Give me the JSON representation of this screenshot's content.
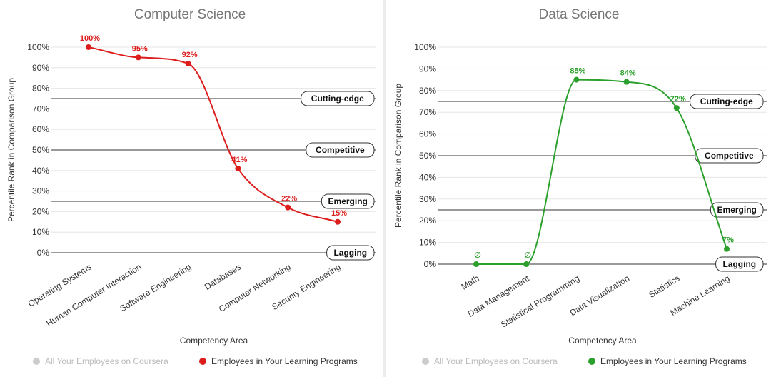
{
  "chart_data": [
    {
      "type": "line",
      "title": "Computer Science",
      "xlabel": "Competency Area",
      "ylabel": "Percentile Rank in Comparison Group",
      "ylim": [
        0,
        100
      ],
      "yticks": [
        "0%",
        "10%",
        "20%",
        "30%",
        "40%",
        "50%",
        "60%",
        "70%",
        "80%",
        "90%",
        "100%"
      ],
      "grid": true,
      "categories": [
        "Operating Systems",
        "Human Computer Interaction",
        "Software Engineering",
        "Databases",
        "Computer Networking",
        "Security Engineering"
      ],
      "series": [
        {
          "name": "Employees in Your Learning Programs",
          "color": "#dd1c1c",
          "values": [
            100,
            95,
            92,
            41,
            22,
            15
          ],
          "labels": [
            "100%",
            "95%",
            "92%",
            "41%",
            "22%",
            "15%"
          ]
        }
      ],
      "bands": [
        {
          "label": "Cutting-edge",
          "value": 75
        },
        {
          "label": "Competitive",
          "value": 50
        },
        {
          "label": "Emerging",
          "value": 25
        },
        {
          "label": "Lagging",
          "value": 0
        }
      ],
      "legend": {
        "placement": "bottom",
        "items": [
          {
            "label": "All Your Employees on Coursera",
            "color": "#cccccc",
            "text_color": "#bbbbbb"
          },
          {
            "label": "Employees in Your Learning Programs",
            "color": "#dd1c1c",
            "text_color": "#333333"
          }
        ]
      }
    },
    {
      "type": "line",
      "title": "Data Science",
      "xlabel": "Competency Area",
      "ylabel": "Percentile Rank in Comparison Group",
      "ylim": [
        0,
        100
      ],
      "yticks": [
        "0%",
        "10%",
        "20%",
        "30%",
        "40%",
        "50%",
        "60%",
        "70%",
        "80%",
        "90%",
        "100%"
      ],
      "grid": true,
      "categories": [
        "Math",
        "Data Management",
        "Statistical Programming",
        "Data Visualization",
        "Statistics",
        "Machine Learning"
      ],
      "series": [
        {
          "name": "Employees in Your Learning Programs",
          "color": "#2ca02c",
          "values": [
            0,
            0,
            85,
            84,
            72,
            7
          ],
          "labels": [
            "∅",
            "∅",
            "85%",
            "84%",
            "72%",
            "7%"
          ]
        }
      ],
      "bands": [
        {
          "label": "Cutting-edge",
          "value": 75
        },
        {
          "label": "Competitive",
          "value": 50
        },
        {
          "label": "Emerging",
          "value": 25
        },
        {
          "label": "Lagging",
          "value": 0
        }
      ],
      "legend": {
        "placement": "bottom",
        "items": [
          {
            "label": "All Your Employees on Coursera",
            "color": "#cccccc",
            "text_color": "#bbbbbb"
          },
          {
            "label": "Employees in Your Learning Programs",
            "color": "#2ca02c",
            "text_color": "#333333"
          }
        ]
      }
    }
  ]
}
